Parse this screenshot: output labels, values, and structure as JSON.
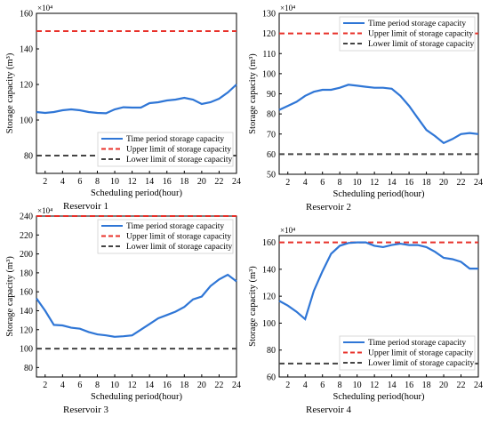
{
  "chart_data": [
    {
      "type": "line",
      "caption": "Reservoir 1",
      "multiplier": "×10⁴",
      "xlabel": "Scheduling period(hour)",
      "ylabel": "Storage capacity (m³)",
      "xlim": [
        1,
        24
      ],
      "ylim": [
        70,
        160
      ],
      "xticks": [
        2,
        4,
        6,
        8,
        10,
        12,
        14,
        16,
        18,
        20,
        22,
        24
      ],
      "yticks": [
        80,
        100,
        120,
        140,
        160
      ],
      "legend_position": "lower-right",
      "grid": false,
      "x": [
        1,
        2,
        3,
        4,
        5,
        6,
        7,
        8,
        9,
        10,
        11,
        12,
        13,
        14,
        15,
        16,
        17,
        18,
        19,
        20,
        21,
        22,
        23,
        24
      ],
      "series": [
        {
          "name": "Time period storage capacity",
          "style": "solid",
          "color": "#2f76d6",
          "values": [
            104.5,
            104,
            104.5,
            105.5,
            106,
            105.5,
            104.5,
            104,
            103.8,
            106,
            107.2,
            107,
            107,
            109.5,
            110,
            111,
            111.5,
            112.5,
            111.5,
            109,
            110,
            112,
            115.5,
            120
          ]
        },
        {
          "name": "Upper limit of storage capacity",
          "style": "dashed",
          "color": "#e8312a",
          "values": [
            150,
            150,
            150,
            150,
            150,
            150,
            150,
            150,
            150,
            150,
            150,
            150,
            150,
            150,
            150,
            150,
            150,
            150,
            150,
            150,
            150,
            150,
            150,
            150
          ]
        },
        {
          "name": "Lower limit of storage capacity",
          "style": "dashed",
          "color": "#444444",
          "values": [
            80,
            80,
            80,
            80,
            80,
            80,
            80,
            80,
            80,
            80,
            80,
            80,
            80,
            80,
            80,
            80,
            80,
            80,
            80,
            80,
            80,
            80,
            80,
            80
          ]
        }
      ]
    },
    {
      "type": "line",
      "caption": "Reservoir 2",
      "multiplier": "×10⁴",
      "xlabel": "Scheduling period(hour)",
      "ylabel": "Storage capacity (m³)",
      "xlim": [
        1,
        24
      ],
      "ylim": [
        50,
        130
      ],
      "xticks": [
        2,
        4,
        6,
        8,
        10,
        12,
        14,
        16,
        18,
        20,
        22,
        24
      ],
      "yticks": [
        50,
        60,
        70,
        80,
        90,
        100,
        110,
        120,
        130
      ],
      "legend_position": "top-right",
      "grid": false,
      "x": [
        1,
        2,
        3,
        4,
        5,
        6,
        7,
        8,
        9,
        10,
        11,
        12,
        13,
        14,
        15,
        16,
        17,
        18,
        19,
        20,
        21,
        22,
        23,
        24
      ],
      "series": [
        {
          "name": "Time period storage capacity",
          "style": "solid",
          "color": "#2f76d6",
          "values": [
            82,
            84,
            86,
            89,
            91,
            92,
            92,
            93,
            94.5,
            94,
            93.5,
            93,
            93,
            92.5,
            89,
            84,
            78,
            72,
            69,
            65.5,
            67.5,
            70,
            70.5,
            70
          ]
        },
        {
          "name": "Upper limit of storage capacity",
          "style": "dashed",
          "color": "#e8312a",
          "values": [
            120,
            120,
            120,
            120,
            120,
            120,
            120,
            120,
            120,
            120,
            120,
            120,
            120,
            120,
            120,
            120,
            120,
            120,
            120,
            120,
            120,
            120,
            120,
            120
          ]
        },
        {
          "name": "Lower limit of storage capacity",
          "style": "dashed",
          "color": "#444444",
          "values": [
            60,
            60,
            60,
            60,
            60,
            60,
            60,
            60,
            60,
            60,
            60,
            60,
            60,
            60,
            60,
            60,
            60,
            60,
            60,
            60,
            60,
            60,
            60,
            60
          ]
        }
      ]
    },
    {
      "type": "line",
      "caption": "Reservoir 3",
      "multiplier": "×10⁴",
      "xlabel": "Scheduling period(hour)",
      "ylabel": "Storage capacity (m³)",
      "xlim": [
        1,
        24
      ],
      "ylim": [
        70,
        240
      ],
      "xticks": [
        2,
        4,
        6,
        8,
        10,
        12,
        14,
        16,
        18,
        20,
        22,
        24
      ],
      "yticks": [
        80,
        100,
        120,
        140,
        160,
        180,
        200,
        220,
        240
      ],
      "legend_position": "top-right",
      "grid": false,
      "x": [
        1,
        2,
        3,
        4,
        5,
        6,
        7,
        8,
        9,
        10,
        11,
        12,
        13,
        14,
        15,
        16,
        17,
        18,
        19,
        20,
        21,
        22,
        23,
        24
      ],
      "series": [
        {
          "name": "Time period storage capacity",
          "style": "solid",
          "color": "#2f76d6",
          "values": [
            153,
            140,
            125,
            124.5,
            122,
            121,
            117.5,
            115,
            114,
            112.5,
            113,
            114,
            120,
            126,
            132,
            135.5,
            139,
            144,
            152,
            155,
            166,
            173,
            178,
            171
          ]
        },
        {
          "name": "Upper limit of storage capacity",
          "style": "dashed",
          "color": "#e8312a",
          "values": [
            240,
            240,
            240,
            240,
            240,
            240,
            240,
            240,
            240,
            240,
            240,
            240,
            240,
            240,
            240,
            240,
            240,
            240,
            240,
            240,
            240,
            240,
            240,
            240
          ]
        },
        {
          "name": "Lower limit of storage capacity",
          "style": "dashed",
          "color": "#444444",
          "values": [
            100,
            100,
            100,
            100,
            100,
            100,
            100,
            100,
            100,
            100,
            100,
            100,
            100,
            100,
            100,
            100,
            100,
            100,
            100,
            100,
            100,
            100,
            100,
            100
          ]
        }
      ]
    },
    {
      "type": "line",
      "caption": "Reservoir 4",
      "multiplier": "×10⁴",
      "xlabel": "Scheduling period(hour)",
      "ylabel": "Storage capacity (m³)",
      "xlim": [
        1,
        24
      ],
      "ylim": [
        60,
        165
      ],
      "xticks": [
        2,
        4,
        6,
        8,
        10,
        12,
        14,
        16,
        18,
        20,
        22,
        24
      ],
      "yticks": [
        60,
        80,
        100,
        120,
        140,
        160
      ],
      "legend_position": "lower-right",
      "grid": false,
      "x": [
        1,
        2,
        3,
        4,
        5,
        6,
        7,
        8,
        9,
        10,
        11,
        12,
        13,
        14,
        15,
        16,
        17,
        18,
        19,
        20,
        21,
        22,
        23,
        24
      ],
      "series": [
        {
          "name": "Time period storage capacity",
          "style": "solid",
          "color": "#2f76d6",
          "values": [
            116.5,
            113,
            108.5,
            103,
            124,
            138.5,
            151.5,
            157.5,
            159.5,
            160,
            160,
            157.5,
            156.5,
            158,
            159,
            158,
            158,
            156.5,
            153,
            148.5,
            147.5,
            145.5,
            140.5,
            140.5
          ]
        },
        {
          "name": "Upper limit of storage capacity",
          "style": "dashed",
          "color": "#e8312a",
          "values": [
            160,
            160,
            160,
            160,
            160,
            160,
            160,
            160,
            160,
            160,
            160,
            160,
            160,
            160,
            160,
            160,
            160,
            160,
            160,
            160,
            160,
            160,
            160,
            160
          ]
        },
        {
          "name": "Lower limit of storage capacity",
          "style": "dashed",
          "color": "#444444",
          "values": [
            70,
            70,
            70,
            70,
            70,
            70,
            70,
            70,
            70,
            70,
            70,
            70,
            70,
            70,
            70,
            70,
            70,
            70,
            70,
            70,
            70,
            70,
            70,
            70
          ]
        }
      ]
    }
  ]
}
